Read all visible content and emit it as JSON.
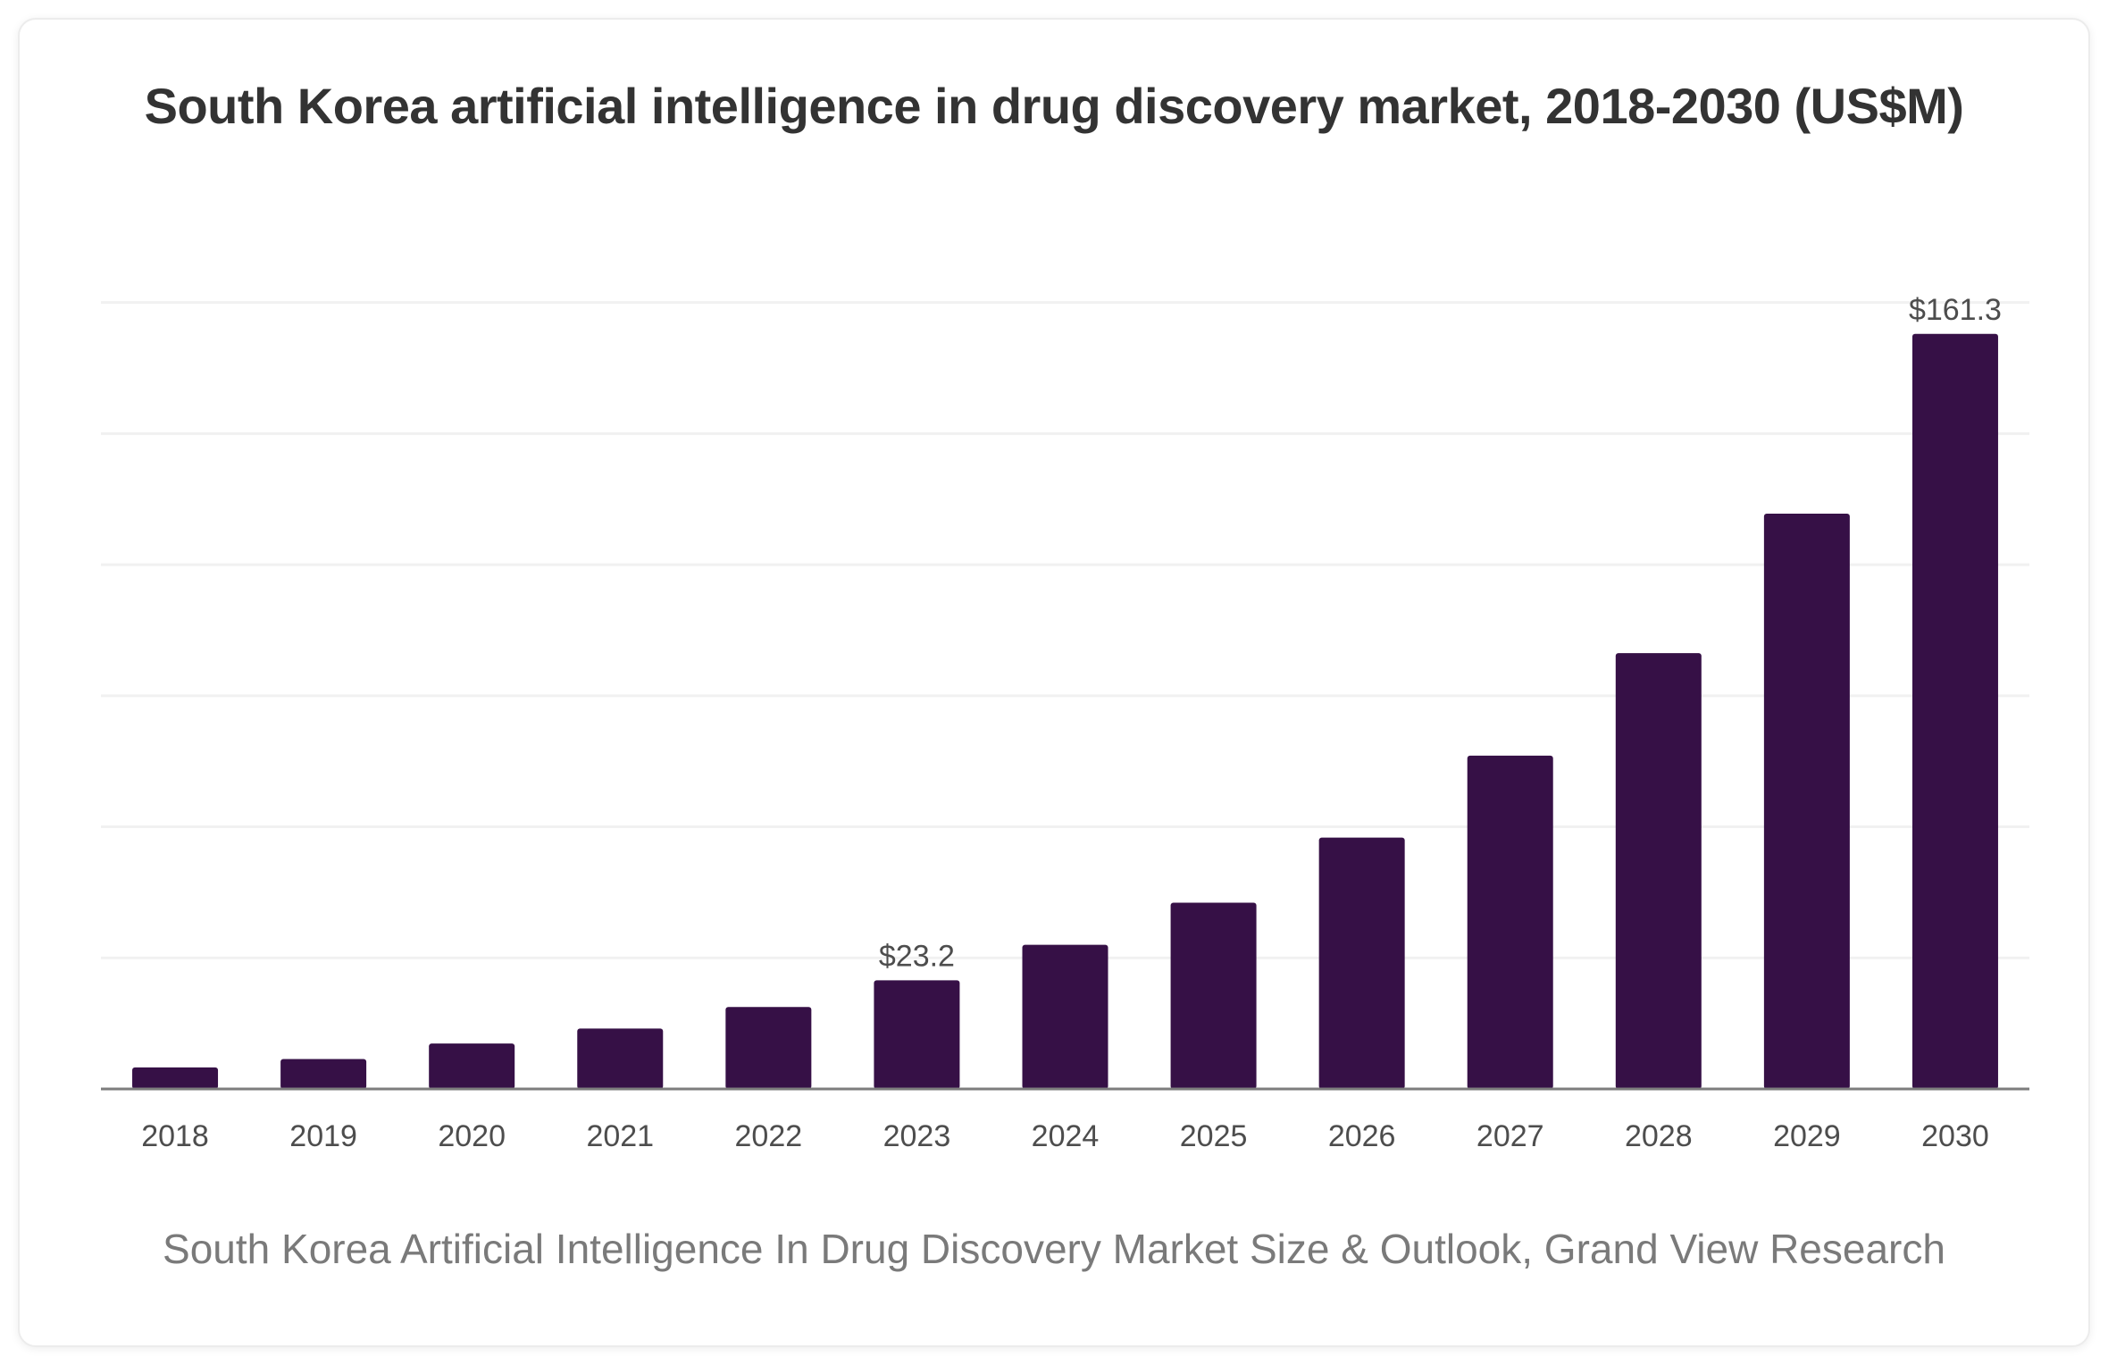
{
  "chart_data": {
    "type": "bar",
    "title": "South Korea artificial intelligence in drug discovery market, 2018-2030 (US$M)",
    "xlabel": "",
    "ylabel": "",
    "categories": [
      "2018",
      "2019",
      "2020",
      "2021",
      "2022",
      "2023",
      "2024",
      "2025",
      "2026",
      "2027",
      "2028",
      "2029",
      "2030"
    ],
    "values": [
      4.6,
      6.4,
      9.7,
      12.9,
      17.5,
      23.2,
      30.8,
      39.8,
      53.7,
      71.2,
      93.1,
      122.9,
      161.3
    ],
    "data_labels": [
      {
        "index": 5,
        "text": "$23.2"
      },
      {
        "index": 12,
        "text": "$161.3"
      }
    ],
    "ylim": [
      0,
      170
    ],
    "grid": true,
    "bar_color": "#361046",
    "legend": "none"
  },
  "caption": "South Korea Artificial Intelligence In Drug Discovery Market Size & Outlook, Grand View Research"
}
